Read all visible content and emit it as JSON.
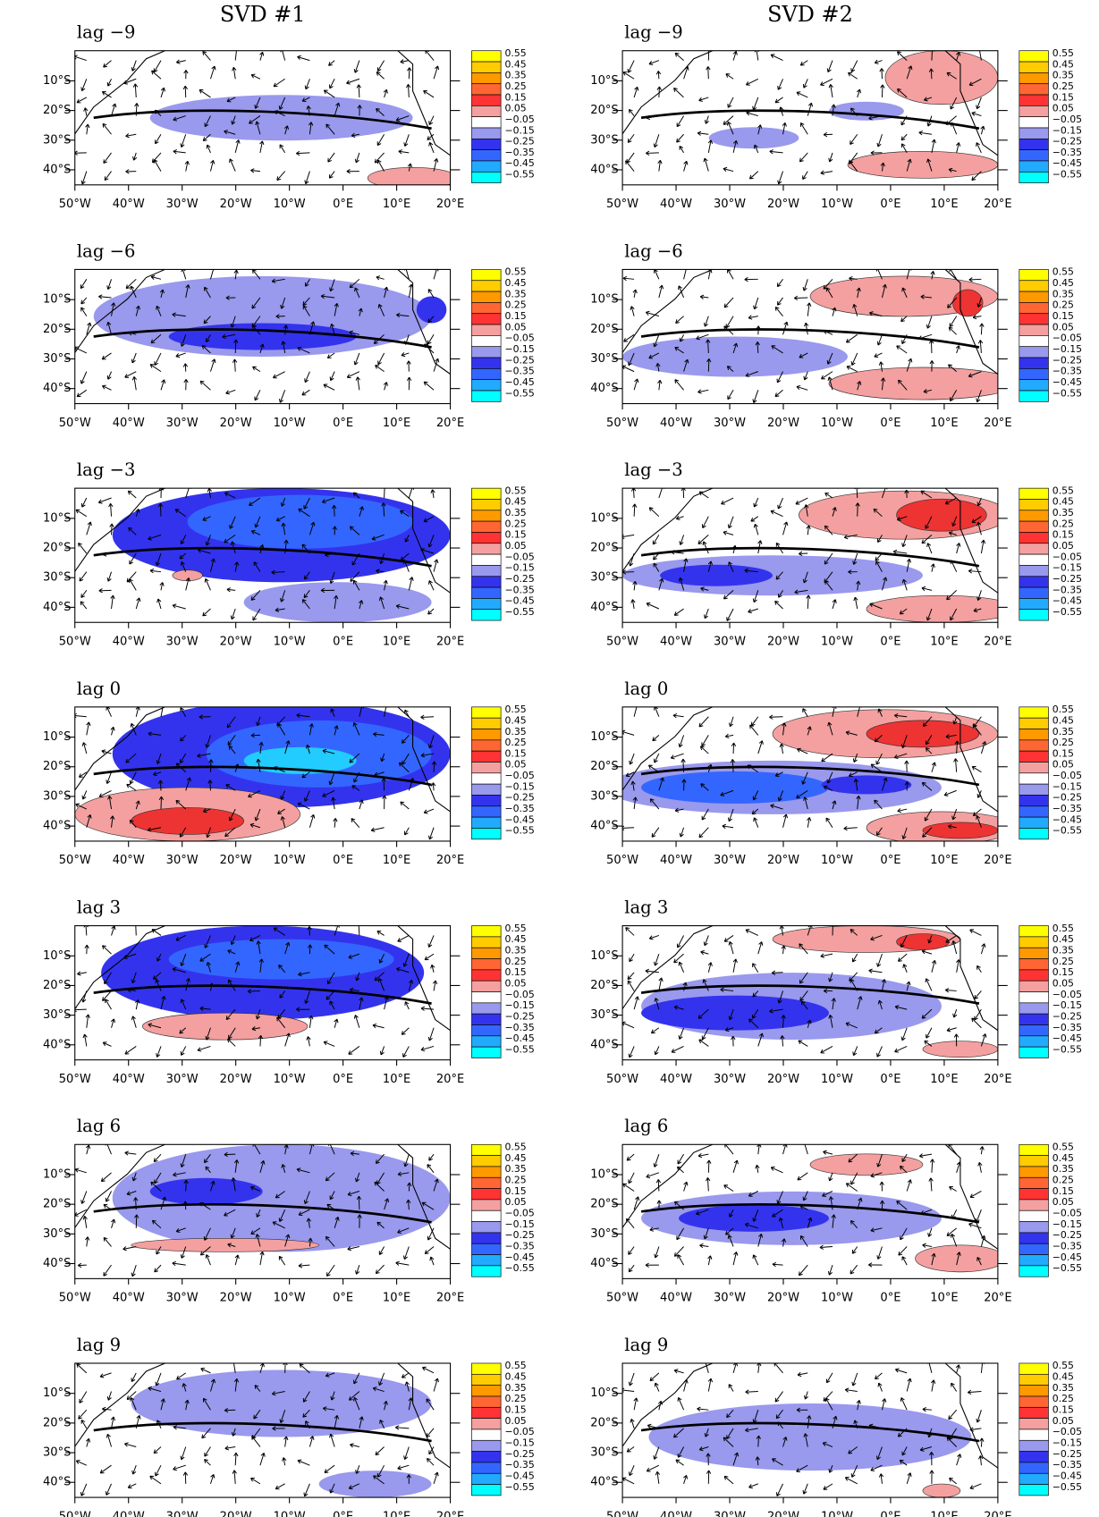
{
  "columns": [
    {
      "title": "SVD #1",
      "panels": [
        {
          "label": "lag −9"
        },
        {
          "label": "lag −6"
        },
        {
          "label": "lag −3"
        },
        {
          "label": "lag 0"
        },
        {
          "label": "lag 3"
        },
        {
          "label": "lag 6"
        },
        {
          "label": "lag 9"
        }
      ]
    },
    {
      "title": "SVD #2",
      "panels": [
        {
          "label": "lag −9"
        },
        {
          "label": "lag −6"
        },
        {
          "label": "lag −3"
        },
        {
          "label": "lag 0"
        },
        {
          "label": "lag 3"
        },
        {
          "label": "lag 6"
        },
        {
          "label": "lag 9"
        }
      ]
    }
  ],
  "y_axis_labels": [
    "10°S",
    "20°S",
    "30°S",
    "40°S"
  ],
  "x_axis_labels": [
    "50°W",
    "40°W",
    "30°W",
    "20°W",
    "10°W",
    "0°E",
    "10°E",
    "20°E"
  ],
  "colorbar": {
    "labels": [
      "0.55",
      "0.45",
      "0.35",
      "0.25",
      "0.15",
      "0.05",
      "−0.05",
      "−0.15",
      "−0.25",
      "−0.35",
      "−0.45",
      "−0.55"
    ],
    "colors": [
      "#ffff00",
      "#ffcc00",
      "#ff9900",
      "#ff6633",
      "#ff3333",
      "#f4a0a0",
      "#ffffff",
      "#9999ee",
      "#3333ee",
      "#3366ff",
      "#22aaff",
      "#00ffff"
    ]
  }
}
